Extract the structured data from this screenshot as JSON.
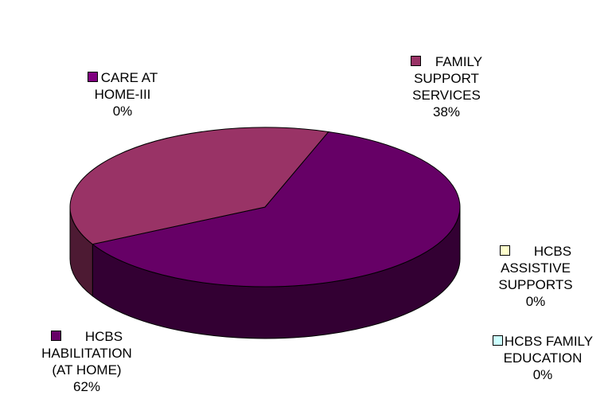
{
  "chart_data": {
    "type": "pie",
    "style": "3d",
    "title": "",
    "slices": [
      {
        "name_lines": [
          "HCBS",
          "HABILITATION",
          "(AT HOME)"
        ],
        "percent_label": "62%",
        "value": 62,
        "color": "#660066"
      },
      {
        "name_lines": [
          "CARE AT",
          "HOME-III"
        ],
        "percent_label": "0%",
        "value": 0,
        "color": "#800080"
      },
      {
        "name_lines": [
          "FAMILY",
          "SUPPORT",
          "SERVICES"
        ],
        "percent_label": "38%",
        "value": 38,
        "color": "#993366"
      },
      {
        "name_lines": [
          "HCBS",
          "ASSISTIVE",
          "SUPPORTS"
        ],
        "percent_label": "0%",
        "value": 0,
        "color": "#FFFFCC"
      },
      {
        "name_lines": [
          "HCBS FAMILY",
          "EDUCATION"
        ],
        "percent_label": "0%",
        "value": 0,
        "color": "#CCFFFF"
      }
    ]
  }
}
